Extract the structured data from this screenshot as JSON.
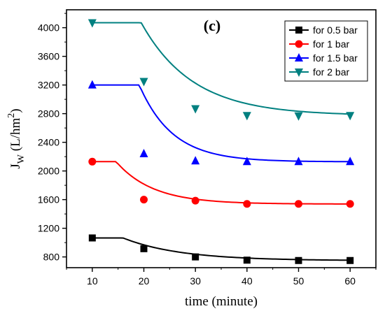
{
  "chart_data": {
    "type": "line",
    "panel_label": "(c)",
    "xlabel": "time (minute)",
    "ylabel": "J",
    "ylabel_subscript": "W",
    "ylabel_unit_prefix": " (L/hm",
    "ylabel_unit_sup": "2",
    "ylabel_unit_suffix": ")",
    "xlim": [
      5,
      65
    ],
    "ylim": [
      650,
      4250
    ],
    "x_ticks": [
      10,
      20,
      30,
      40,
      50,
      60
    ],
    "y_ticks": [
      800,
      1200,
      1600,
      2000,
      2400,
      2800,
      3200,
      3600,
      4000
    ],
    "legend_position": "top-right",
    "x": [
      10,
      20,
      30,
      40,
      50,
      60
    ],
    "series": [
      {
        "name": "for 0.5 bar",
        "marker": "square",
        "color": "#000000",
        "values": [
          1065,
          915,
          800,
          755,
          750,
          750
        ],
        "fit": {
          "plateau": 748,
          "amplitude": 542,
          "rate": 0.09
        }
      },
      {
        "name": "for 1 bar",
        "marker": "circle",
        "color": "#ff0000",
        "values": [
          2130,
          1600,
          1585,
          1540,
          1540,
          1540
        ],
        "fit": {
          "plateau": 1538,
          "amplitude": 1130,
          "rate": 0.14
        }
      },
      {
        "name": "for 1.5 bar",
        "marker": "triangle-up",
        "color": "#0000ff",
        "values": [
          3200,
          2240,
          2140,
          2130,
          2130,
          2130
        ],
        "fit": {
          "plateau": 2128,
          "amplitude": 4400,
          "rate": 0.155
        }
      },
      {
        "name": "for 2 bar",
        "marker": "triangle-down",
        "color": "#008080",
        "values": [
          4070,
          3250,
          2870,
          2775,
          2770,
          2775
        ],
        "fit": {
          "plateau": 2772,
          "amplitude": 3350,
          "rate": 0.1
        }
      }
    ]
  }
}
